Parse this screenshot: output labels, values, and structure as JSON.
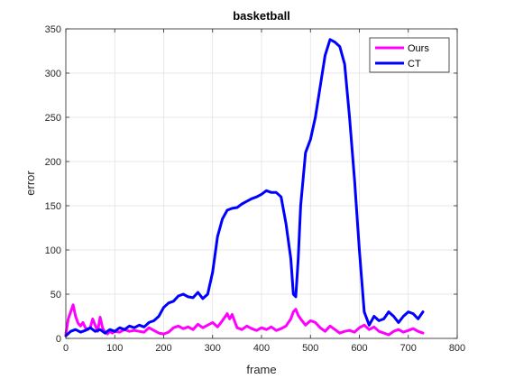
{
  "chart_data": {
    "type": "line",
    "title": "basketball",
    "xlabel": "frame",
    "ylabel": "error",
    "xlim": [
      0,
      800
    ],
    "ylim": [
      0,
      350
    ],
    "xticks": [
      0,
      100,
      200,
      300,
      400,
      500,
      600,
      700,
      800
    ],
    "yticks": [
      0,
      50,
      100,
      150,
      200,
      250,
      300,
      350
    ],
    "grid": true,
    "legend_position": "top-right",
    "series": [
      {
        "name": "Ours",
        "color": "#ff00ff",
        "x": [
          0,
          5,
          10,
          15,
          20,
          25,
          30,
          35,
          40,
          45,
          50,
          55,
          60,
          65,
          70,
          75,
          80,
          85,
          90,
          95,
          100,
          110,
          120,
          130,
          140,
          150,
          160,
          170,
          180,
          190,
          200,
          210,
          220,
          230,
          240,
          250,
          260,
          270,
          280,
          290,
          300,
          310,
          320,
          330,
          335,
          340,
          350,
          360,
          370,
          380,
          390,
          400,
          410,
          420,
          430,
          440,
          450,
          460,
          465,
          470,
          475,
          480,
          490,
          500,
          510,
          520,
          530,
          540,
          550,
          560,
          570,
          580,
          590,
          600,
          610,
          620,
          630,
          640,
          650,
          660,
          670,
          680,
          690,
          700,
          710,
          720,
          730
        ],
        "values": [
          5,
          22,
          30,
          38,
          25,
          17,
          14,
          18,
          12,
          10,
          12,
          22,
          15,
          8,
          24,
          12,
          7,
          5,
          8,
          6,
          8,
          7,
          10,
          8,
          9,
          8,
          7,
          12,
          9,
          6,
          5,
          7,
          12,
          14,
          11,
          13,
          10,
          16,
          12,
          15,
          18,
          13,
          20,
          28,
          22,
          27,
          12,
          10,
          14,
          11,
          9,
          12,
          10,
          13,
          9,
          11,
          14,
          22,
          30,
          33,
          26,
          22,
          15,
          20,
          18,
          12,
          8,
          14,
          10,
          6,
          8,
          9,
          7,
          12,
          15,
          10,
          13,
          8,
          6,
          4,
          8,
          10,
          7,
          9,
          11,
          8,
          6
        ]
      },
      {
        "name": "CT",
        "color": "#0000ff",
        "x": [
          0,
          10,
          20,
          30,
          40,
          50,
          60,
          70,
          80,
          90,
          100,
          110,
          120,
          130,
          140,
          150,
          160,
          170,
          180,
          190,
          200,
          210,
          220,
          230,
          240,
          250,
          260,
          270,
          280,
          290,
          300,
          310,
          320,
          330,
          340,
          350,
          360,
          370,
          380,
          390,
          400,
          410,
          420,
          430,
          440,
          450,
          460,
          465,
          470,
          475,
          480,
          490,
          500,
          510,
          520,
          530,
          540,
          550,
          560,
          570,
          580,
          590,
          600,
          610,
          620,
          630,
          640,
          650,
          660,
          670,
          680,
          690,
          700,
          710,
          720,
          730
        ],
        "values": [
          3,
          8,
          10,
          7,
          9,
          12,
          8,
          10,
          6,
          10,
          8,
          12,
          10,
          14,
          12,
          15,
          13,
          18,
          20,
          25,
          35,
          40,
          42,
          48,
          50,
          47,
          46,
          52,
          45,
          50,
          75,
          115,
          135,
          145,
          147,
          148,
          152,
          155,
          158,
          160,
          163,
          167,
          165,
          165,
          160,
          130,
          90,
          50,
          47,
          90,
          150,
          210,
          225,
          250,
          285,
          320,
          338,
          335,
          330,
          310,
          250,
          180,
          100,
          30,
          15,
          25,
          20,
          22,
          30,
          25,
          18,
          25,
          30,
          28,
          22,
          30
        ]
      }
    ]
  }
}
